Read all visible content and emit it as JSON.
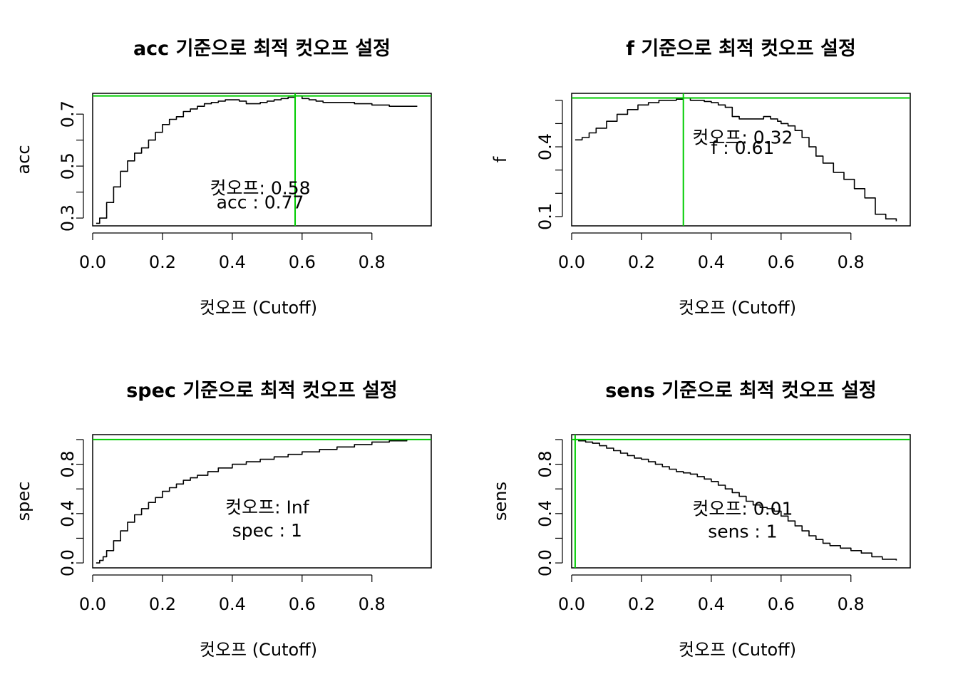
{
  "figure": {
    "background": "#ffffff",
    "line_color": "#000000",
    "marker_color": "#00cc00"
  },
  "chart_data": [
    {
      "type": "line",
      "title": "acc 기준으로 최적 컷오프 설정",
      "xlabel": "컷오프 (Cutoff)",
      "ylabel": "acc",
      "xlim": [
        0.0,
        0.97
      ],
      "ylim": [
        0.27,
        0.78
      ],
      "xticks": [
        0.0,
        0.2,
        0.4,
        0.6,
        0.8
      ],
      "xtick_labels": [
        "0.0",
        "0.2",
        "0.4",
        "0.6",
        "0.8"
      ],
      "yticks": [
        0.3,
        0.4,
        0.5,
        0.6,
        0.7
      ],
      "ytick_labels": [
        "0.3",
        "",
        "0.5",
        "",
        "0.7"
      ],
      "series": [
        {
          "x": [
            0.01,
            0.02,
            0.04,
            0.06,
            0.08,
            0.1,
            0.12,
            0.14,
            0.16,
            0.18,
            0.2,
            0.22,
            0.24,
            0.26,
            0.28,
            0.3,
            0.32,
            0.34,
            0.36,
            0.38,
            0.4,
            0.42,
            0.44,
            0.46,
            0.48,
            0.5,
            0.52,
            0.54,
            0.56,
            0.58,
            0.6,
            0.62,
            0.64,
            0.66,
            0.7,
            0.75,
            0.8,
            0.85,
            0.9,
            0.93
          ],
          "y": [
            0.28,
            0.3,
            0.36,
            0.42,
            0.48,
            0.52,
            0.55,
            0.57,
            0.6,
            0.63,
            0.66,
            0.68,
            0.69,
            0.71,
            0.72,
            0.73,
            0.74,
            0.745,
            0.75,
            0.755,
            0.755,
            0.75,
            0.74,
            0.74,
            0.745,
            0.75,
            0.755,
            0.76,
            0.765,
            0.77,
            0.76,
            0.755,
            0.75,
            0.745,
            0.745,
            0.74,
            0.735,
            0.73,
            0.73,
            0.73
          ]
        }
      ],
      "hline": 0.77,
      "vline": 0.58,
      "annotation": {
        "line1": "컷오프: 0.58",
        "line2": "acc : 0.77",
        "x": 0.48,
        "y1": 0.415,
        "y2": 0.36
      }
    },
    {
      "type": "line",
      "title": "f 기준으로 최적 컷오프 설정",
      "xlabel": "컷오프 (Cutoff)",
      "ylabel": "f",
      "xlim": [
        0.0,
        0.97
      ],
      "ylim": [
        0.06,
        0.63
      ],
      "xticks": [
        0.0,
        0.2,
        0.4,
        0.6,
        0.8
      ],
      "xtick_labels": [
        "0.0",
        "0.2",
        "0.4",
        "0.6",
        "0.8"
      ],
      "yticks": [
        0.1,
        0.2,
        0.3,
        0.4,
        0.5,
        0.6
      ],
      "ytick_labels": [
        "0.1",
        "",
        "",
        "0.4",
        "",
        ""
      ],
      "series": [
        {
          "x": [
            0.01,
            0.03,
            0.05,
            0.07,
            0.1,
            0.13,
            0.16,
            0.19,
            0.22,
            0.25,
            0.28,
            0.3,
            0.32,
            0.34,
            0.36,
            0.38,
            0.4,
            0.42,
            0.44,
            0.46,
            0.48,
            0.5,
            0.52,
            0.55,
            0.57,
            0.59,
            0.6,
            0.62,
            0.64,
            0.66,
            0.68,
            0.7,
            0.72,
            0.75,
            0.78,
            0.81,
            0.84,
            0.87,
            0.9,
            0.93
          ],
          "y": [
            0.43,
            0.44,
            0.46,
            0.48,
            0.51,
            0.54,
            0.56,
            0.58,
            0.59,
            0.6,
            0.6,
            0.605,
            0.61,
            0.6,
            0.6,
            0.595,
            0.59,
            0.58,
            0.57,
            0.53,
            0.52,
            0.52,
            0.52,
            0.53,
            0.52,
            0.51,
            0.5,
            0.49,
            0.47,
            0.44,
            0.4,
            0.36,
            0.33,
            0.29,
            0.26,
            0.22,
            0.18,
            0.11,
            0.09,
            0.08
          ]
        }
      ],
      "hline": 0.61,
      "vline": 0.32,
      "annotation": {
        "line1": "컷오프: 0.32",
        "line2": "f : 0.61",
        "x": 0.49,
        "y1": 0.4405,
        "y2": 0.3955
      }
    },
    {
      "type": "line",
      "title": "spec 기준으로 최적 컷오프 설정",
      "xlabel": "컷오프 (Cutoff)",
      "ylabel": "spec",
      "xlim": [
        0.0,
        0.97
      ],
      "ylim": [
        -0.04,
        1.04
      ],
      "xticks": [
        0.0,
        0.2,
        0.4,
        0.6,
        0.8
      ],
      "xtick_labels": [
        "0.0",
        "0.2",
        "0.4",
        "0.6",
        "0.8"
      ],
      "yticks": [
        0.0,
        0.2,
        0.4,
        0.6,
        0.8,
        1.0
      ],
      "ytick_labels": [
        "0.0",
        "",
        "0.4",
        "",
        "0.8",
        ""
      ],
      "series": [
        {
          "x": [
            0.01,
            0.02,
            0.03,
            0.04,
            0.06,
            0.08,
            0.1,
            0.12,
            0.14,
            0.16,
            0.18,
            0.2,
            0.22,
            0.24,
            0.26,
            0.28,
            0.3,
            0.33,
            0.36,
            0.4,
            0.44,
            0.48,
            0.52,
            0.56,
            0.6,
            0.65,
            0.7,
            0.75,
            0.8,
            0.85,
            0.9
          ],
          "y": [
            0.0,
            0.02,
            0.05,
            0.1,
            0.18,
            0.26,
            0.33,
            0.39,
            0.44,
            0.49,
            0.53,
            0.58,
            0.61,
            0.64,
            0.67,
            0.69,
            0.71,
            0.74,
            0.77,
            0.8,
            0.82,
            0.84,
            0.86,
            0.88,
            0.9,
            0.92,
            0.94,
            0.96,
            0.98,
            0.99,
            1.0
          ]
        }
      ],
      "hline": 1.0,
      "vline": null,
      "annotation": {
        "line1": "컷오프: Inf",
        "line2": "spec : 1",
        "x": 0.5,
        "y1": 0.4495,
        "y2": 0.2645
      }
    },
    {
      "type": "line",
      "title": "sens 기준으로 최적 컷오프 설정",
      "xlabel": "컷오프 (Cutoff)",
      "ylabel": "sens",
      "xlim": [
        0.0,
        0.97
      ],
      "ylim": [
        -0.04,
        1.04
      ],
      "xticks": [
        0.0,
        0.2,
        0.4,
        0.6,
        0.8
      ],
      "xtick_labels": [
        "0.0",
        "0.2",
        "0.4",
        "0.6",
        "0.8"
      ],
      "yticks": [
        0.0,
        0.2,
        0.4,
        0.6,
        0.8,
        1.0
      ],
      "ytick_labels": [
        "0.0",
        "",
        "0.4",
        "",
        "0.8",
        ""
      ],
      "series": [
        {
          "x": [
            0.01,
            0.02,
            0.04,
            0.06,
            0.08,
            0.1,
            0.12,
            0.14,
            0.16,
            0.18,
            0.2,
            0.22,
            0.24,
            0.26,
            0.28,
            0.3,
            0.32,
            0.34,
            0.36,
            0.38,
            0.4,
            0.42,
            0.44,
            0.46,
            0.48,
            0.5,
            0.52,
            0.54,
            0.56,
            0.58,
            0.6,
            0.62,
            0.64,
            0.66,
            0.68,
            0.7,
            0.72,
            0.74,
            0.77,
            0.8,
            0.83,
            0.86,
            0.89,
            0.93
          ],
          "y": [
            1.0,
            0.99,
            0.98,
            0.97,
            0.95,
            0.93,
            0.91,
            0.89,
            0.87,
            0.85,
            0.84,
            0.82,
            0.8,
            0.78,
            0.76,
            0.74,
            0.73,
            0.72,
            0.7,
            0.68,
            0.66,
            0.63,
            0.6,
            0.57,
            0.54,
            0.5,
            0.47,
            0.45,
            0.44,
            0.42,
            0.38,
            0.34,
            0.3,
            0.26,
            0.22,
            0.19,
            0.16,
            0.14,
            0.12,
            0.1,
            0.08,
            0.05,
            0.03,
            0.02
          ]
        }
      ],
      "hline": 1.0,
      "vline": 0.01,
      "annotation": {
        "line1": "컷오프: 0.01",
        "line2": "sens : 1",
        "x": 0.49,
        "y1": 0.4395,
        "y2": 0.2555
      }
    }
  ]
}
